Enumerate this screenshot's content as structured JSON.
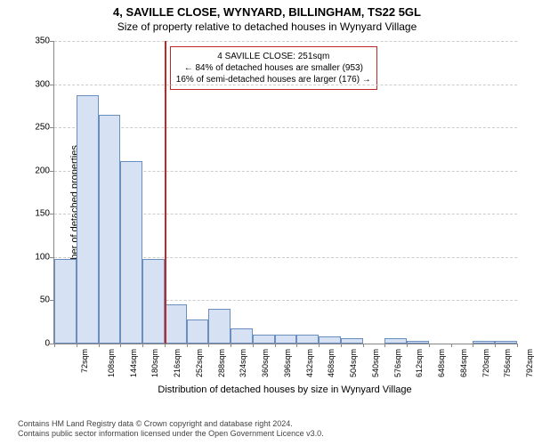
{
  "title": "4, SAVILLE CLOSE, WYNYARD, BILLINGHAM, TS22 5GL",
  "subtitle": "Size of property relative to detached houses in Wynyard Village",
  "chart": {
    "type": "histogram",
    "ylabel": "Number of detached properties",
    "xlabel": "Distribution of detached houses by size in Wynyard Village",
    "ylim": [
      0,
      350
    ],
    "ytick_step": 50,
    "bar_fill": "#d6e2f4",
    "bar_stroke": "#6a8fbf",
    "grid_color": "#cccccc",
    "axis_color": "#888888",
    "background_color": "#ffffff",
    "reference_line_color": "#c02828",
    "categories": [
      "72sqm",
      "108sqm",
      "144sqm",
      "180sqm",
      "216sqm",
      "252sqm",
      "288sqm",
      "324sqm",
      "360sqm",
      "396sqm",
      "432sqm",
      "468sqm",
      "504sqm",
      "540sqm",
      "576sqm",
      "612sqm",
      "648sqm",
      "684sqm",
      "720sqm",
      "756sqm",
      "792sqm"
    ],
    "values": [
      98,
      287,
      265,
      211,
      98,
      45,
      28,
      40,
      18,
      10,
      10,
      10,
      8,
      6,
      0,
      6,
      3,
      0,
      0,
      3,
      3
    ],
    "reference_category_index": 5,
    "annotation": {
      "line1": "4 SAVILLE CLOSE: 251sqm",
      "line2": "← 84% of detached houses are smaller (953)",
      "line3": "16% of semi-detached houses are larger (176) →"
    },
    "label_fontsize": 11,
    "tick_fontsize": 10
  },
  "footer": {
    "line1": "Contains HM Land Registry data © Crown copyright and database right 2024.",
    "line2": "Contains public sector information licensed under the Open Government Licence v3.0."
  }
}
